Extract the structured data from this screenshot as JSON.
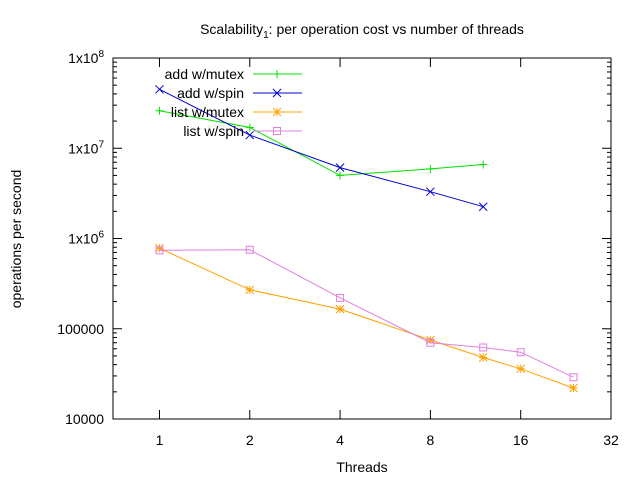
{
  "chart_data": {
    "type": "line",
    "title_main": "Scalability",
    "title_sub": "1",
    "title_rest": ": per operation cost vs number of threads",
    "xlabel": "Threads",
    "ylabel": "operations per second",
    "xscale": "log2",
    "yscale": "log10",
    "xlim": [
      0.7,
      32
    ],
    "ylim": [
      10000,
      100000000
    ],
    "x_ticks": [
      1,
      2,
      4,
      8,
      16,
      32
    ],
    "x_tick_labels": [
      "1",
      "2",
      "4",
      "8",
      "16",
      "32"
    ],
    "y_ticks": [
      10000,
      100000,
      1000000,
      10000000,
      100000000
    ],
    "y_tick_labels": [
      {
        "base": "10000",
        "sup": ""
      },
      {
        "base": "100000",
        "sup": ""
      },
      {
        "base": "1x10",
        "sup": "6"
      },
      {
        "base": "1x10",
        "sup": "7"
      },
      {
        "base": "1x10",
        "sup": "8"
      }
    ],
    "legend_position": "top-left",
    "series": [
      {
        "name": "add w/mutex",
        "color": "#00e000",
        "marker": "plus",
        "x": [
          1,
          2,
          4,
          8,
          12
        ],
        "y": [
          26000000,
          17000000,
          5000000,
          5900000,
          6600000
        ]
      },
      {
        "name": "add w/spin",
        "color": "#0000cc",
        "marker": "cross",
        "x": [
          1,
          2,
          4,
          8,
          12
        ],
        "y": [
          45000000,
          14000000,
          6100000,
          3300000,
          2250000
        ]
      },
      {
        "name": "list w/mutex",
        "color": "#ffa000",
        "marker": "star",
        "x": [
          1,
          2,
          4,
          8,
          12,
          16,
          24
        ],
        "y": [
          780000,
          270000,
          165000,
          75000,
          48000,
          36000,
          22000
        ]
      },
      {
        "name": "list w/spin",
        "color": "#e080e0",
        "marker": "square",
        "x": [
          1,
          2,
          4,
          8,
          12,
          16,
          24
        ],
        "y": [
          740000,
          750000,
          220000,
          70000,
          62000,
          55000,
          29000
        ]
      }
    ]
  }
}
